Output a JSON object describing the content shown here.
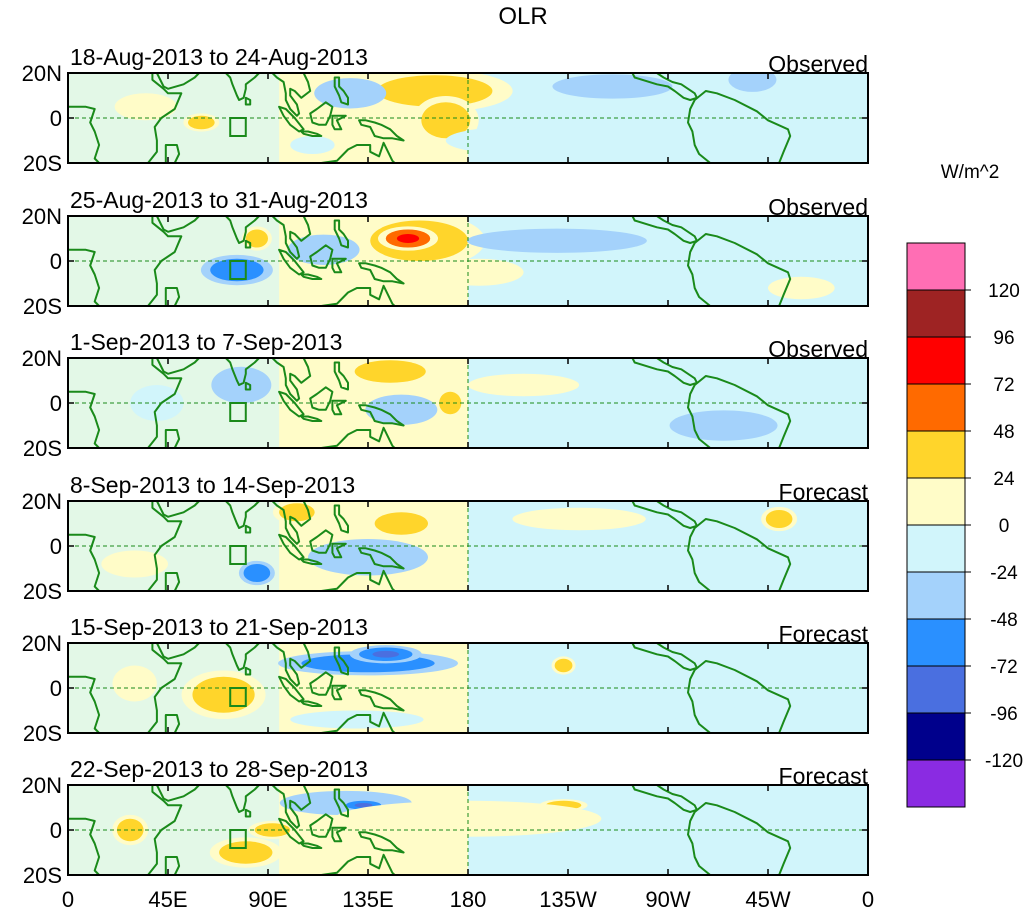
{
  "chart_data": {
    "type": "heatmap",
    "title": "OLR",
    "colorbar": {
      "unit": "W/m^2",
      "levels": [
        120,
        96,
        72,
        48,
        24,
        0,
        -24,
        -48,
        -72,
        -96,
        -120
      ],
      "colors": [
        "#ff6eb4",
        "#9e2323",
        "#ff0000",
        "#ff6a00",
        "#ffd52b",
        "#fffcc8",
        "#d1f5fb",
        "#a4d2fb",
        "#2a90ff",
        "#4a6fe0",
        "#00008c",
        "#8a2be2"
      ]
    },
    "x_axis": {
      "ticks": [
        "0",
        "45E",
        "90E",
        "135E",
        "180",
        "135W",
        "90W",
        "45W",
        "0"
      ],
      "tick_values": [
        0,
        45,
        90,
        135,
        180,
        225,
        270,
        315,
        360
      ],
      "range": [
        0,
        360
      ]
    },
    "y_axis": {
      "ticks": [
        "20N",
        "0",
        "20S"
      ],
      "tick_values": [
        20,
        0,
        -20
      ],
      "range": [
        -20,
        20
      ]
    },
    "box": {
      "lon": [
        73,
        80
      ],
      "lat": [
        -8,
        0
      ]
    },
    "panels": [
      {
        "period": "18-Aug-2013 to 24-Aug-2013",
        "kind": "Observed",
        "anomalies": [
          {
            "lon": 165,
            "lat": 12,
            "rl": 26,
            "rt": 7,
            "v": 28
          },
          {
            "lon": 170,
            "lat": -1,
            "rl": 11,
            "rt": 8,
            "v": 28
          },
          {
            "lon": 127,
            "lat": 11,
            "rl": 12,
            "rt": 5,
            "v": -40
          },
          {
            "lon": 245,
            "lat": 14,
            "rl": 20,
            "rt": 4,
            "v": -35
          },
          {
            "lon": 308,
            "lat": 17,
            "rl": 8,
            "rt": 4,
            "v": -30
          },
          {
            "lon": 35,
            "lat": 5,
            "rl": 14,
            "rt": 6,
            "v": 12
          },
          {
            "lon": 60,
            "lat": -2,
            "rl": 6,
            "rt": 3,
            "v": 28
          },
          {
            "lon": 110,
            "lat": -12,
            "rl": 10,
            "rt": 4,
            "v": -20
          },
          {
            "lon": 200,
            "lat": -10,
            "rl": 30,
            "rt": 6,
            "v": -10
          },
          {
            "lon": 290,
            "lat": -12,
            "rl": 20,
            "rt": 5,
            "v": -15
          }
        ]
      },
      {
        "period": "25-Aug-2013 to 31-Aug-2013",
        "kind": "Observed",
        "anomalies": [
          {
            "lon": 158,
            "lat": 9,
            "rl": 22,
            "rt": 9,
            "v": 38
          },
          {
            "lon": 153,
            "lat": 10,
            "rl": 10,
            "rt": 4,
            "v": 62
          },
          {
            "lon": 76,
            "lat": -4,
            "rl": 12,
            "rt": 5,
            "v": -60
          },
          {
            "lon": 115,
            "lat": 5,
            "rl": 12,
            "rt": 5,
            "v": -30
          },
          {
            "lon": 85,
            "lat": 10,
            "rl": 5,
            "rt": 4,
            "v": 28
          },
          {
            "lon": 220,
            "lat": 9,
            "rl": 30,
            "rt": 4,
            "v": -35
          },
          {
            "lon": 185,
            "lat": -5,
            "rl": 20,
            "rt": 6,
            "v": 10
          },
          {
            "lon": 300,
            "lat": 16,
            "rl": 15,
            "rt": 6,
            "v": -20
          },
          {
            "lon": 330,
            "lat": -12,
            "rl": 15,
            "rt": 5,
            "v": 12
          }
        ]
      },
      {
        "period": "1-Sep-2013 to 7-Sep-2013",
        "kind": "Observed",
        "anomalies": [
          {
            "lon": 145,
            "lat": 14,
            "rl": 16,
            "rt": 5,
            "v": 30
          },
          {
            "lon": 172,
            "lat": 0,
            "rl": 5,
            "rt": 5,
            "v": 28
          },
          {
            "lon": 78,
            "lat": 8,
            "rl": 10,
            "rt": 6,
            "v": -40
          },
          {
            "lon": 150,
            "lat": -3,
            "rl": 12,
            "rt": 5,
            "v": -40
          },
          {
            "lon": 205,
            "lat": 8,
            "rl": 25,
            "rt": 5,
            "v": 12
          },
          {
            "lon": 295,
            "lat": -10,
            "rl": 18,
            "rt": 5,
            "v": -28
          },
          {
            "lon": 40,
            "lat": 0,
            "rl": 12,
            "rt": 8,
            "v": -10
          }
        ]
      },
      {
        "period": "8-Sep-2013 to 14-Sep-2013",
        "kind": "Forecast",
        "anomalies": [
          {
            "lon": 150,
            "lat": 10,
            "rl": 12,
            "rt": 5,
            "v": 28
          },
          {
            "lon": 103,
            "lat": 15,
            "rl": 8,
            "rt": 4,
            "v": 28
          },
          {
            "lon": 320,
            "lat": 12,
            "rl": 6,
            "rt": 4,
            "v": 30
          },
          {
            "lon": 85,
            "lat": -12,
            "rl": 6,
            "rt": 4,
            "v": -60
          },
          {
            "lon": 135,
            "lat": -5,
            "rl": 20,
            "rt": 6,
            "v": -30
          },
          {
            "lon": 280,
            "lat": -5,
            "rl": 15,
            "rt": 8,
            "v": -20
          },
          {
            "lon": 230,
            "lat": 12,
            "rl": 30,
            "rt": 5,
            "v": 10
          },
          {
            "lon": 30,
            "lat": -8,
            "rl": 15,
            "rt": 6,
            "v": 10
          }
        ]
      },
      {
        "period": "15-Sep-2013 to 21-Sep-2013",
        "kind": "Forecast",
        "anomalies": [
          {
            "lon": 135,
            "lat": 11,
            "rl": 30,
            "rt": 4,
            "v": -50
          },
          {
            "lon": 143,
            "lat": 15,
            "rl": 12,
            "rt": 3,
            "v": -70
          },
          {
            "lon": 70,
            "lat": -3,
            "rl": 14,
            "rt": 8,
            "v": 30
          },
          {
            "lon": 223,
            "lat": 10,
            "rl": 4,
            "rt": 3,
            "v": 30
          },
          {
            "lon": 130,
            "lat": -14,
            "rl": 30,
            "rt": 4,
            "v": -20
          },
          {
            "lon": 260,
            "lat": -8,
            "rl": 40,
            "rt": 6,
            "v": -15
          },
          {
            "lon": 30,
            "lat": 2,
            "rl": 10,
            "rt": 8,
            "v": 10
          }
        ]
      },
      {
        "period": "22-Sep-2013 to 28-Sep-2013",
        "kind": "Forecast",
        "anomalies": [
          {
            "lon": 125,
            "lat": 12,
            "rl": 22,
            "rt": 4,
            "v": -40
          },
          {
            "lon": 133,
            "lat": 11,
            "rl": 8,
            "rt": 2,
            "v": -65
          },
          {
            "lon": 80,
            "lat": -10,
            "rl": 12,
            "rt": 5,
            "v": 28
          },
          {
            "lon": 92,
            "lat": 0,
            "rl": 8,
            "rt": 3,
            "v": 28
          },
          {
            "lon": 28,
            "lat": 0,
            "rl": 6,
            "rt": 5,
            "v": 28
          },
          {
            "lon": 223,
            "lat": 11,
            "rl": 8,
            "rt": 2,
            "v": 28
          },
          {
            "lon": 180,
            "lat": 5,
            "rl": 60,
            "rt": 8,
            "v": 10
          },
          {
            "lon": 290,
            "lat": -8,
            "rl": 40,
            "rt": 8,
            "v": -12
          }
        ]
      }
    ],
    "landmasses": [
      {
        "name": "Africa",
        "pts": [
          [
            0,
            5
          ],
          [
            8,
            5
          ],
          [
            12,
            4
          ],
          [
            10,
            -2
          ],
          [
            12,
            -6
          ],
          [
            14,
            -12
          ],
          [
            12,
            -18
          ],
          [
            14,
            -20
          ],
          [
            36,
            -20
          ],
          [
            40,
            -15
          ],
          [
            40,
            -10
          ],
          [
            39,
            -4
          ],
          [
            42,
            0
          ],
          [
            48,
            4
          ],
          [
            51,
            11
          ],
          [
            45,
            11
          ],
          [
            43,
            13
          ],
          [
            38,
            17
          ],
          [
            38,
            20
          ],
          [
            0,
            20
          ]
        ]
      },
      {
        "name": "Arabia",
        "pts": [
          [
            40,
            20
          ],
          [
            43,
            14
          ],
          [
            45,
            13
          ],
          [
            52,
            15
          ],
          [
            57,
            18
          ],
          [
            59,
            20
          ]
        ]
      },
      {
        "name": "India",
        "pts": [
          [
            69,
            20
          ],
          [
            70,
            21
          ],
          [
            73,
            18
          ],
          [
            74,
            15
          ],
          [
            76,
            10
          ],
          [
            77,
            8
          ],
          [
            79,
            9
          ],
          [
            80,
            13
          ],
          [
            80,
            15
          ],
          [
            84,
            18
          ],
          [
            86,
            20
          ]
        ]
      },
      {
        "name": "Sri Lanka",
        "pts": [
          [
            80,
            9
          ],
          [
            82,
            8
          ],
          [
            82,
            6
          ],
          [
            80,
            6
          ]
        ]
      },
      {
        "name": "Madagascar",
        "pts": [
          [
            44,
            -12
          ],
          [
            49,
            -12
          ],
          [
            50,
            -16
          ],
          [
            48,
            -20
          ],
          [
            44,
            -20
          ],
          [
            44,
            -15
          ]
        ]
      },
      {
        "name": "Indochina",
        "pts": [
          [
            92,
            20
          ],
          [
            94,
            18
          ],
          [
            97,
            16
          ],
          [
            98,
            11
          ],
          [
            98,
            8
          ],
          [
            100,
            4
          ],
          [
            103,
            1
          ],
          [
            104,
            2
          ],
          [
            103,
            6
          ],
          [
            100,
            10
          ],
          [
            100,
            13
          ],
          [
            102,
            12
          ],
          [
            105,
            9
          ],
          [
            109,
            12
          ],
          [
            108,
            16
          ],
          [
            106,
            20
          ]
        ]
      },
      {
        "name": "Sumatra",
        "pts": [
          [
            95,
            5
          ],
          [
            98,
            4
          ],
          [
            102,
            0
          ],
          [
            106,
            -5
          ],
          [
            104,
            -6
          ],
          [
            100,
            -3
          ],
          [
            97,
            1
          ]
        ]
      },
      {
        "name": "Java",
        "pts": [
          [
            105,
            -6
          ],
          [
            108,
            -6
          ],
          [
            112,
            -7
          ],
          [
            114,
            -8
          ],
          [
            110,
            -8
          ],
          [
            106,
            -7
          ]
        ]
      },
      {
        "name": "Borneo",
        "pts": [
          [
            109,
            2
          ],
          [
            112,
            4
          ],
          [
            116,
            7
          ],
          [
            119,
            5
          ],
          [
            118,
            1
          ],
          [
            116,
            -3
          ],
          [
            113,
            -3
          ],
          [
            110,
            -2
          ]
        ]
      },
      {
        "name": "Sulawesi",
        "pts": [
          [
            119,
            1
          ],
          [
            121,
            1
          ],
          [
            125,
            1
          ],
          [
            121,
            -1
          ],
          [
            123,
            -5
          ],
          [
            120,
            -5
          ],
          [
            119,
            -3
          ]
        ]
      },
      {
        "name": "Philippines",
        "pts": [
          [
            120,
            18
          ],
          [
            122,
            18
          ],
          [
            122,
            14
          ],
          [
            124,
            12
          ],
          [
            126,
            9
          ],
          [
            126,
            6
          ],
          [
            123,
            7
          ],
          [
            122,
            10
          ],
          [
            120,
            14
          ]
        ]
      },
      {
        "name": "New Guinea",
        "pts": [
          [
            131,
            -1
          ],
          [
            134,
            -1
          ],
          [
            138,
            -2
          ],
          [
            141,
            -3
          ],
          [
            145,
            -5
          ],
          [
            148,
            -8
          ],
          [
            151,
            -10
          ],
          [
            146,
            -9
          ],
          [
            142,
            -9
          ],
          [
            138,
            -8
          ],
          [
            136,
            -4
          ],
          [
            132,
            -3
          ]
        ]
      },
      {
        "name": "Australia",
        "pts": [
          [
            114,
            -20
          ],
          [
            121,
            -19
          ],
          [
            124,
            -16
          ],
          [
            126,
            -14
          ],
          [
            130,
            -12
          ],
          [
            136,
            -12
          ],
          [
            136,
            -15
          ],
          [
            140,
            -17
          ],
          [
            142,
            -11
          ],
          [
            144,
            -15
          ],
          [
            146,
            -19
          ],
          [
            147,
            -20
          ]
        ]
      },
      {
        "name": "Central America",
        "pts": [
          [
            254,
            20
          ],
          [
            255,
            18
          ],
          [
            265,
            15
          ],
          [
            270,
            14
          ],
          [
            273,
            12
          ],
          [
            277,
            9
          ],
          [
            280,
            8
          ],
          [
            283,
            9
          ],
          [
            282,
            11
          ],
          [
            279,
            13
          ],
          [
            276,
            15
          ],
          [
            272,
            16
          ],
          [
            268,
            18
          ],
          [
            265,
            20
          ]
        ]
      },
      {
        "name": "South America",
        "pts": [
          [
            279,
            -2
          ],
          [
            281,
            -6
          ],
          [
            282,
            -12
          ],
          [
            284,
            -16
          ],
          [
            289,
            -20
          ],
          [
            320,
            -20
          ],
          [
            322,
            -15
          ],
          [
            325,
            -8
          ],
          [
            324,
            -5
          ],
          [
            315,
            -1
          ],
          [
            310,
            3
          ],
          [
            300,
            8
          ],
          [
            292,
            11
          ],
          [
            287,
            12
          ],
          [
            282,
            8
          ],
          [
            280,
            4
          ]
        ]
      },
      {
        "name": "Cuba",
        "pts": [
          [
            275,
            22
          ],
          [
            282,
            21
          ],
          [
            285,
            20
          ],
          [
            280,
            20
          ],
          [
            277,
            21
          ]
        ]
      }
    ]
  }
}
